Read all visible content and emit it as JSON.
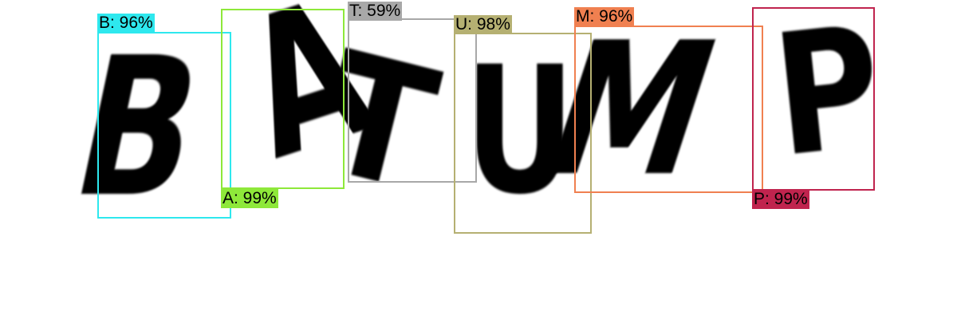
{
  "image": {
    "text": "BATUMP",
    "background": "#ffffff",
    "ink": "#000000"
  },
  "detections": [
    {
      "char": "B",
      "confidence": "96%",
      "label": "B: 96%",
      "color": "#2ee8ee"
    },
    {
      "char": "A",
      "confidence": "99%",
      "label": "A: 99%",
      "color": "#8ee83a"
    },
    {
      "char": "T",
      "confidence": "59%",
      "label": "T: 59%",
      "color": "#a8a8a8"
    },
    {
      "char": "U",
      "confidence": "98%",
      "label": "U: 98%",
      "color": "#b5b072"
    },
    {
      "char": "M",
      "confidence": "96%",
      "label": "M: 96%",
      "color": "#f08050"
    },
    {
      "char": "P",
      "confidence": "99%",
      "label": "P: 99%",
      "color": "#c0244e"
    }
  ]
}
